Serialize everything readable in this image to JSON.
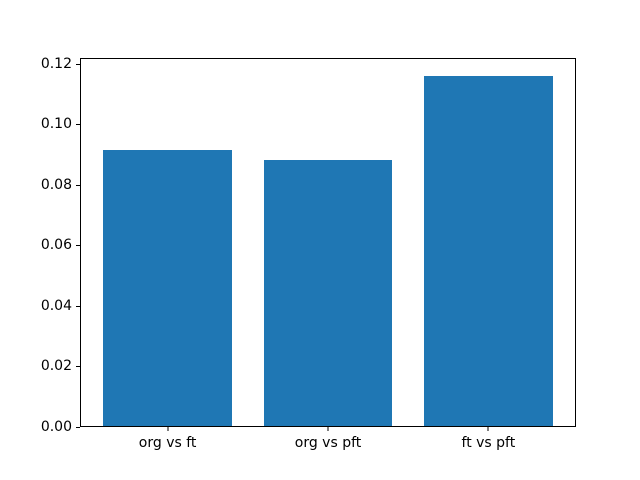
{
  "chart_data": {
    "type": "bar",
    "title": "",
    "xlabel": "",
    "ylabel": "",
    "categories": [
      "org vs ft",
      "org vs pft",
      "ft vs pft"
    ],
    "values": [
      0.0915,
      0.088,
      0.116
    ],
    "bar_color": "#1f77b4",
    "bar_width_fraction": 0.8,
    "xlim": [
      -0.54,
      2.54
    ],
    "ylim": [
      0,
      0.1218
    ],
    "yticks": [
      0,
      0.02,
      0.04,
      0.06,
      0.08,
      0.1,
      0.12
    ],
    "ytick_labels": [
      "0.00",
      "0.02",
      "0.04",
      "0.06",
      "0.08",
      "0.10",
      "0.12"
    ],
    "grid": false,
    "legend": null,
    "background_color": "#ffffff",
    "spine_color": "#000000"
  }
}
